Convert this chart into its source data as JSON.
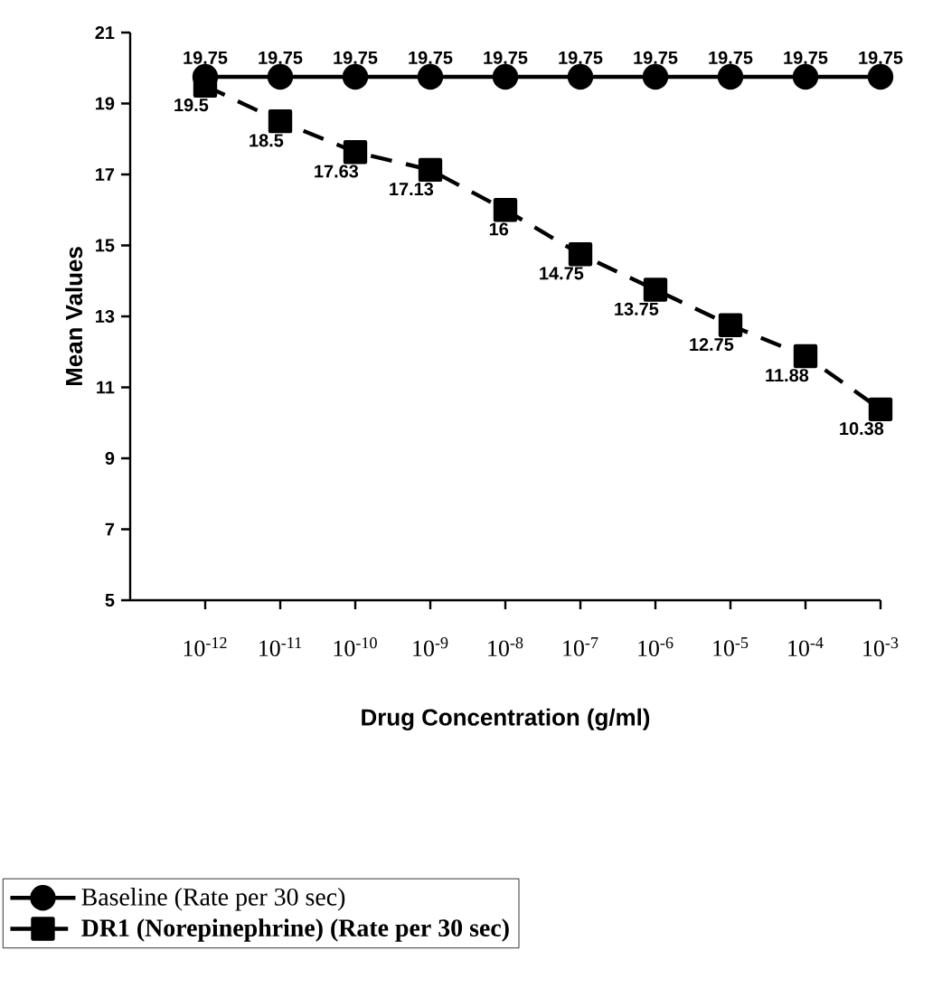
{
  "chart_data": {
    "type": "line",
    "xlabel": "Drug Concentration (g/ml)",
    "ylabel": "Mean Values",
    "categories": [
      "10$^{-12}$",
      "10$^{-11}$",
      "10$^{-10}$",
      "10$^{-9}$",
      "10$^{-8}$",
      "10$^{-7}$",
      "10$^{-6}$",
      "10$^{-5}$",
      "10$^{-4}$",
      "10$^{-3}$"
    ],
    "series": [
      {
        "name": "Baseline (Rate per 30 sec)",
        "color": "#000000",
        "marker": "circle",
        "line_style": "solid",
        "values": [
          19.75,
          19.75,
          19.75,
          19.75,
          19.75,
          19.75,
          19.75,
          19.75,
          19.75,
          19.75
        ]
      },
      {
        "name": "**DR1 (Norepinephrine) (Rate per 30 sec)**",
        "color": "#000000",
        "marker": "square",
        "line_style": "dashed",
        "values": [
          19.5,
          18.5,
          17.63,
          17.13,
          16,
          14.75,
          13.75,
          12.75,
          11.88,
          10.38
        ]
      }
    ],
    "ylim": [
      5,
      21
    ],
    "yticks": [
      5,
      7,
      9,
      11,
      13,
      15,
      17,
      19,
      21
    ],
    "data_labels": true,
    "legend": "bottom",
    "grid": false
  }
}
